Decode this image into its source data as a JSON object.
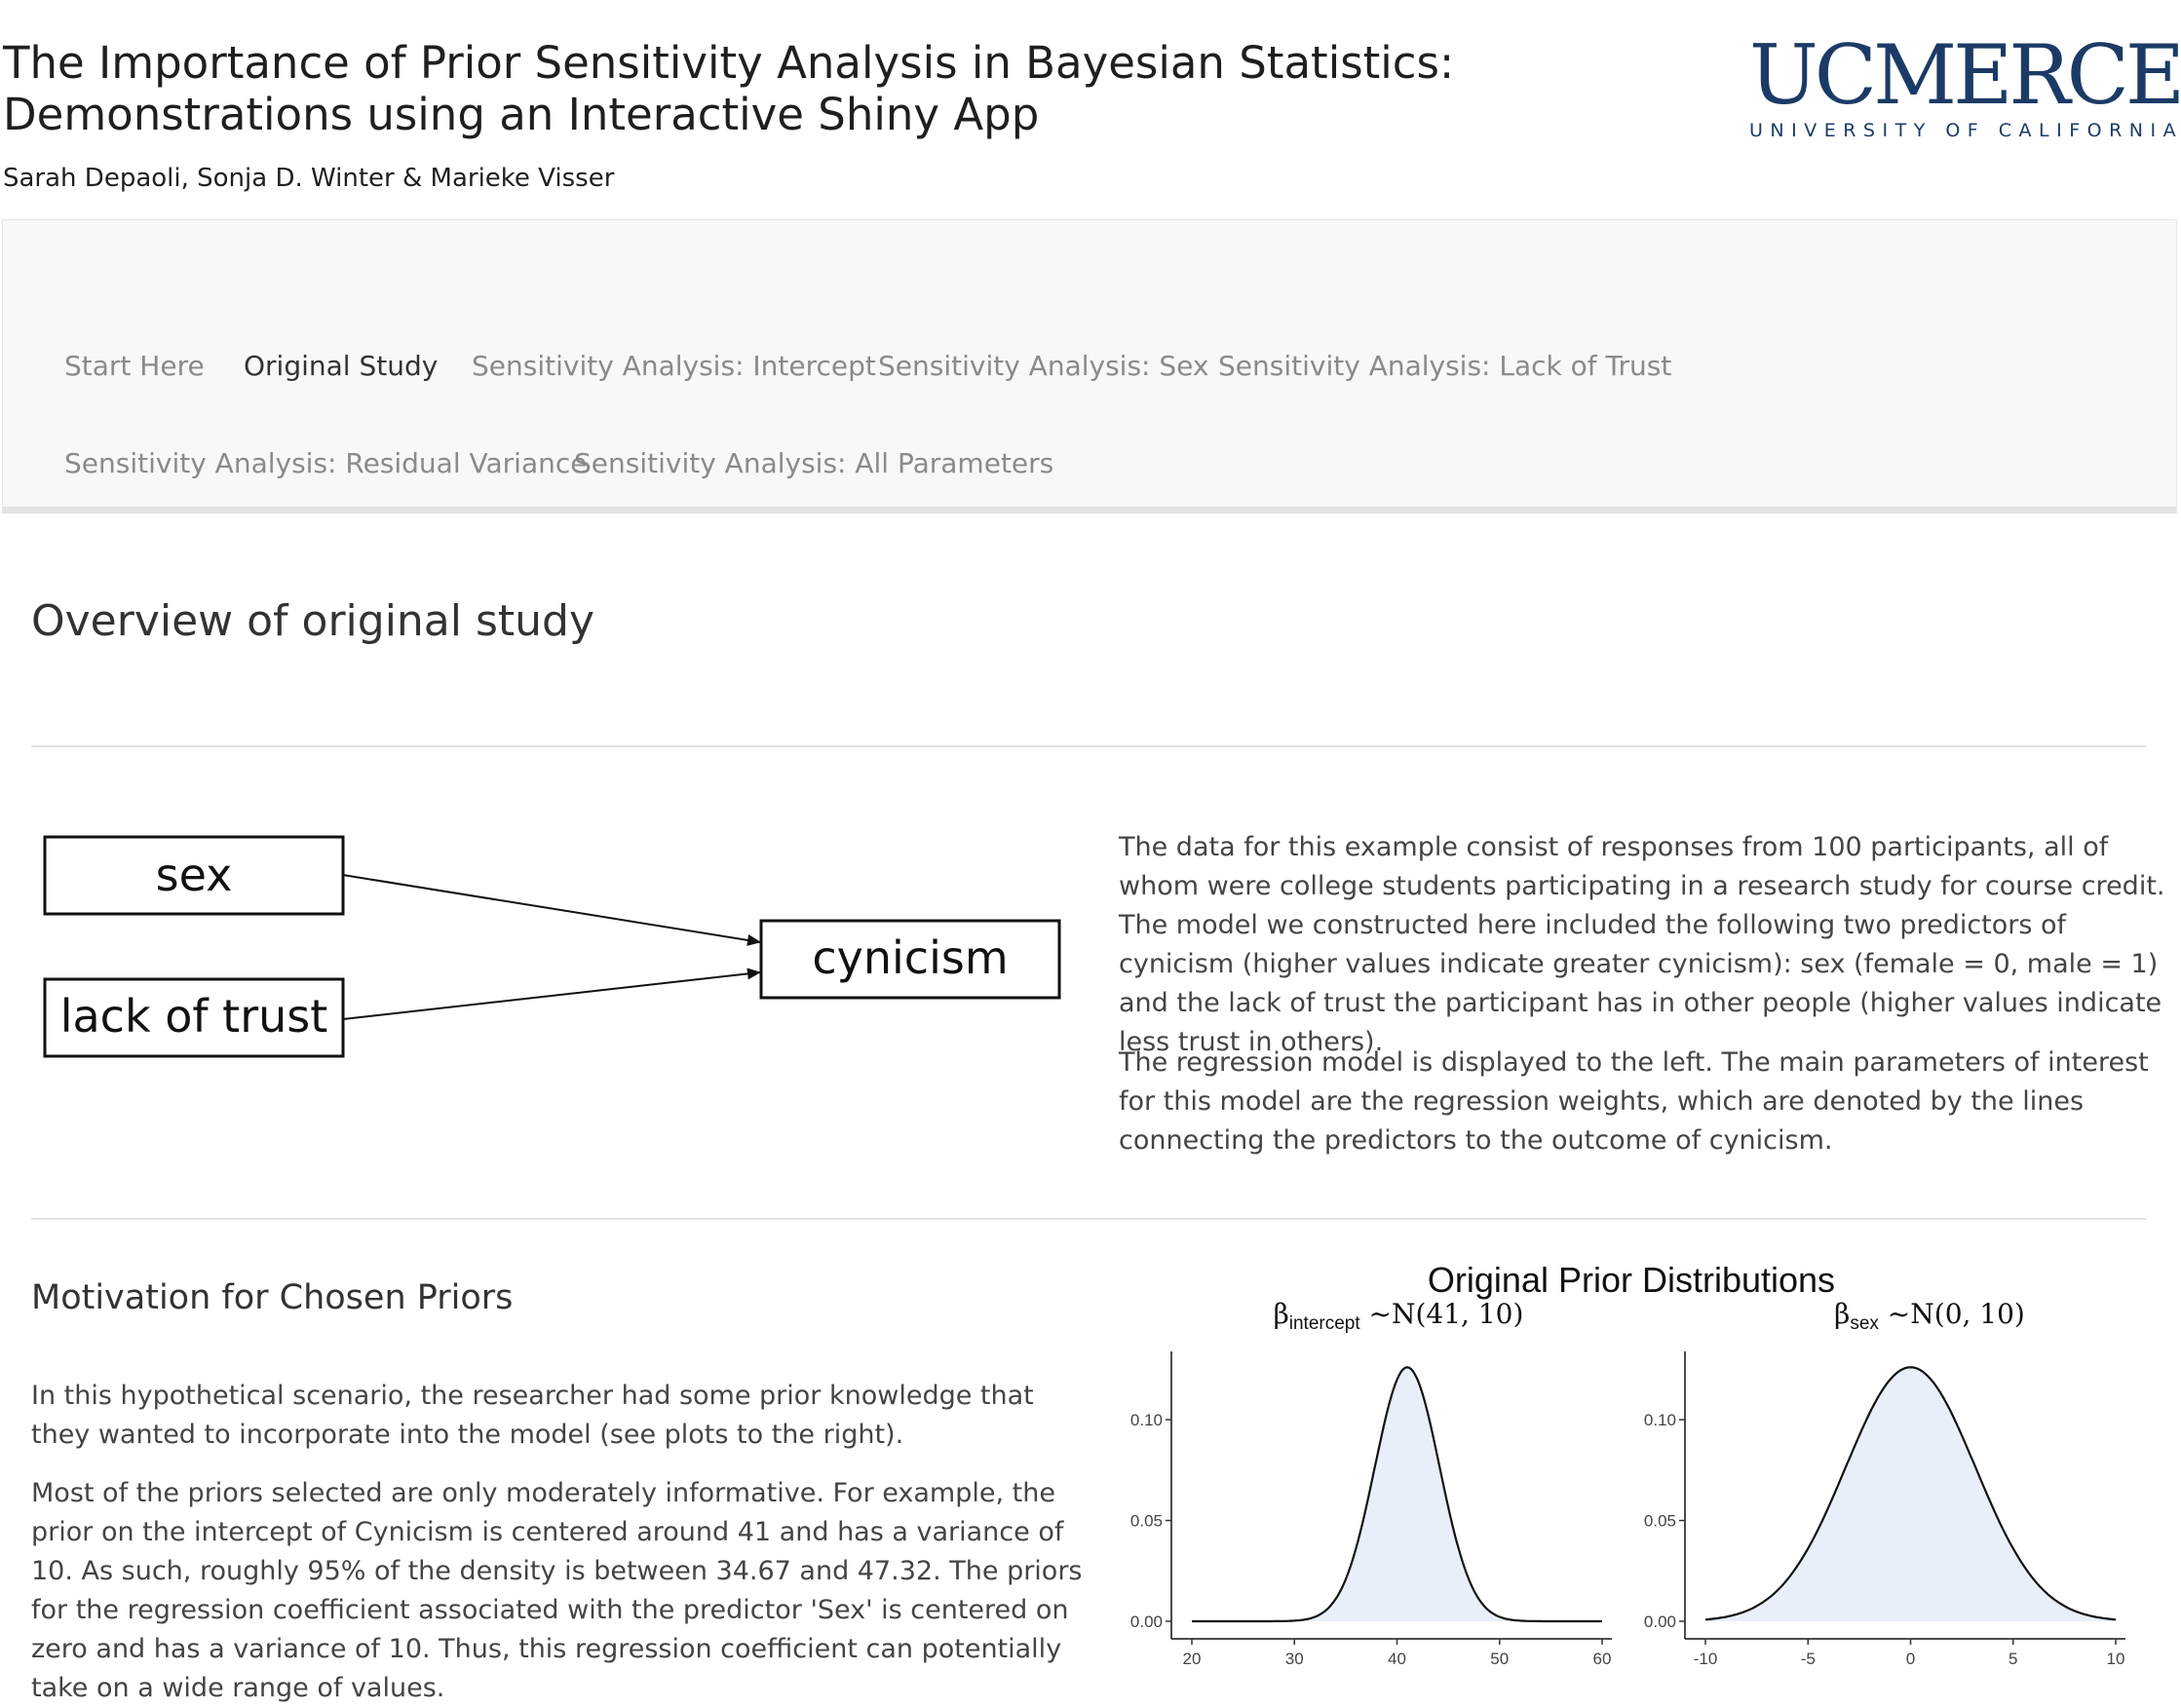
{
  "header": {
    "title": "The Importance of Prior Sensitivity Analysis in Bayesian Statistics: Demonstrations using an Interactive Shiny App",
    "authors": "Sarah Depaoli, Sonja D. Winter & Marieke Visser",
    "logo_main": "UCMERCED",
    "logo_sub": "UNIVERSITY OF CALIFORNIA",
    "logo_color": "#1b3b66"
  },
  "nav": {
    "tabs": [
      {
        "label": "Start Here",
        "active": false
      },
      {
        "label": "Original Study",
        "active": true
      },
      {
        "label": "Sensitivity Analysis: Intercept",
        "active": false
      },
      {
        "label": "Sensitivity Analysis: Sex",
        "active": false
      },
      {
        "label": "Sensitivity Analysis: Lack of Trust",
        "active": false
      },
      {
        "label": "Sensitivity Analysis: Residual Variance",
        "active": false
      },
      {
        "label": "Sensitivity Analysis: All Parameters",
        "active": false
      }
    ]
  },
  "overview": {
    "title": "Overview of original study",
    "diagram": {
      "predictors": [
        "sex",
        "lack of trust"
      ],
      "outcome": "cynicism"
    },
    "paragraphs": [
      "The data for this example consist of responses from 100 participants, all of whom were college students participating in a research study for course credit. The model we constructed here included the following two predictors of cynicism (higher values indicate greater cynicism): sex (female = 0, male = 1) and the lack of trust the participant has in other people (higher values indicate less trust in others).",
      "The regression model is displayed to the left. The main parameters of interest for this model are the regression weights, which are denoted by the lines connecting the predictors to the outcome of cynicism."
    ]
  },
  "motivation": {
    "title": "Motivation for Chosen Priors",
    "paragraphs": [
      "In this hypothetical scenario, the researcher had some prior knowledge that they wanted to incorporate into the model (see plots to the right).",
      "Most of the priors selected are only moderately informative. For example, the prior on the intercept of Cynicism is centered around 41 and has a variance of 10. As such, roughly 95% of the density is between 34.67 and 47.32. The priors for the regression coefficient associated with the predictor 'Sex' is centered on zero and has a variance of 10. Thus, this regression coefficient can potentially take on a wide range of values."
    ]
  },
  "chart_data": {
    "type": "area",
    "title": "Original Prior Distributions",
    "fill_color": "#e8eff9",
    "panels": [
      {
        "name_main": "β",
        "name_sub": "intercept",
        "name_dist": " ~N(41, 10)",
        "distribution": "normal",
        "mean": 41,
        "variance": 10,
        "xlim": [
          20,
          60
        ],
        "xticks": [
          20,
          30,
          40,
          50,
          60
        ],
        "ylim": [
          0,
          0.13
        ],
        "yticks": [
          0.0,
          0.05,
          0.1
        ],
        "peak_density": 0.126
      },
      {
        "name_main": "β",
        "name_sub": "sex",
        "name_dist": " ~N(0, 10)",
        "distribution": "normal",
        "mean": 0,
        "variance": 10,
        "xlim": [
          -10,
          10
        ],
        "xticks": [
          -10,
          -5,
          0,
          5,
          10
        ],
        "ylim": [
          0,
          0.13
        ],
        "yticks": [
          0.0,
          0.05,
          0.1
        ],
        "peak_density": 0.126
      }
    ]
  }
}
